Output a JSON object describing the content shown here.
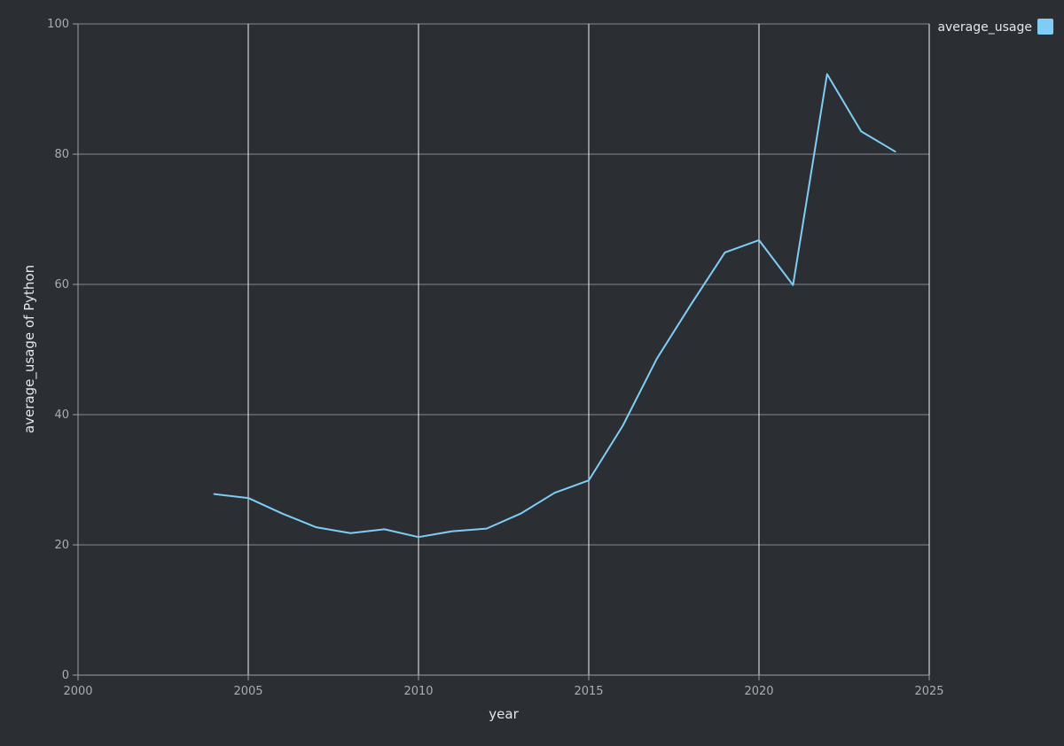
{
  "chart_data": {
    "type": "line",
    "title": "",
    "xlabel": "year",
    "ylabel": "average_usage of Python",
    "xlim": [
      2000,
      2025
    ],
    "ylim": [
      0,
      100
    ],
    "xticks": [
      2000,
      2005,
      2010,
      2015,
      2020,
      2025
    ],
    "yticks": [
      0,
      20,
      40,
      60,
      80,
      100
    ],
    "grid": true,
    "legend_position": "top-right",
    "x": [
      2004,
      2005,
      2006,
      2007,
      2008,
      2009,
      2010,
      2011,
      2012,
      2013,
      2014,
      2015,
      2016,
      2017,
      2018,
      2019,
      2020,
      2021,
      2022,
      2023,
      2024
    ],
    "series": [
      {
        "name": "average_usage",
        "color": "#7fcdf5",
        "values": [
          27.8,
          27.2,
          24.8,
          22.7,
          21.8,
          22.4,
          21.2,
          22.1,
          22.5,
          24.8,
          28.0,
          29.9,
          38.3,
          48.6,
          56.9,
          64.9,
          66.8,
          59.9,
          92.3,
          83.5,
          80.4
        ]
      }
    ]
  },
  "colors": {
    "background": "#2b2f34",
    "grid": "#c4c8cd",
    "vertical_grid": "#f2f2f2",
    "axis": "#9aa0a6"
  }
}
